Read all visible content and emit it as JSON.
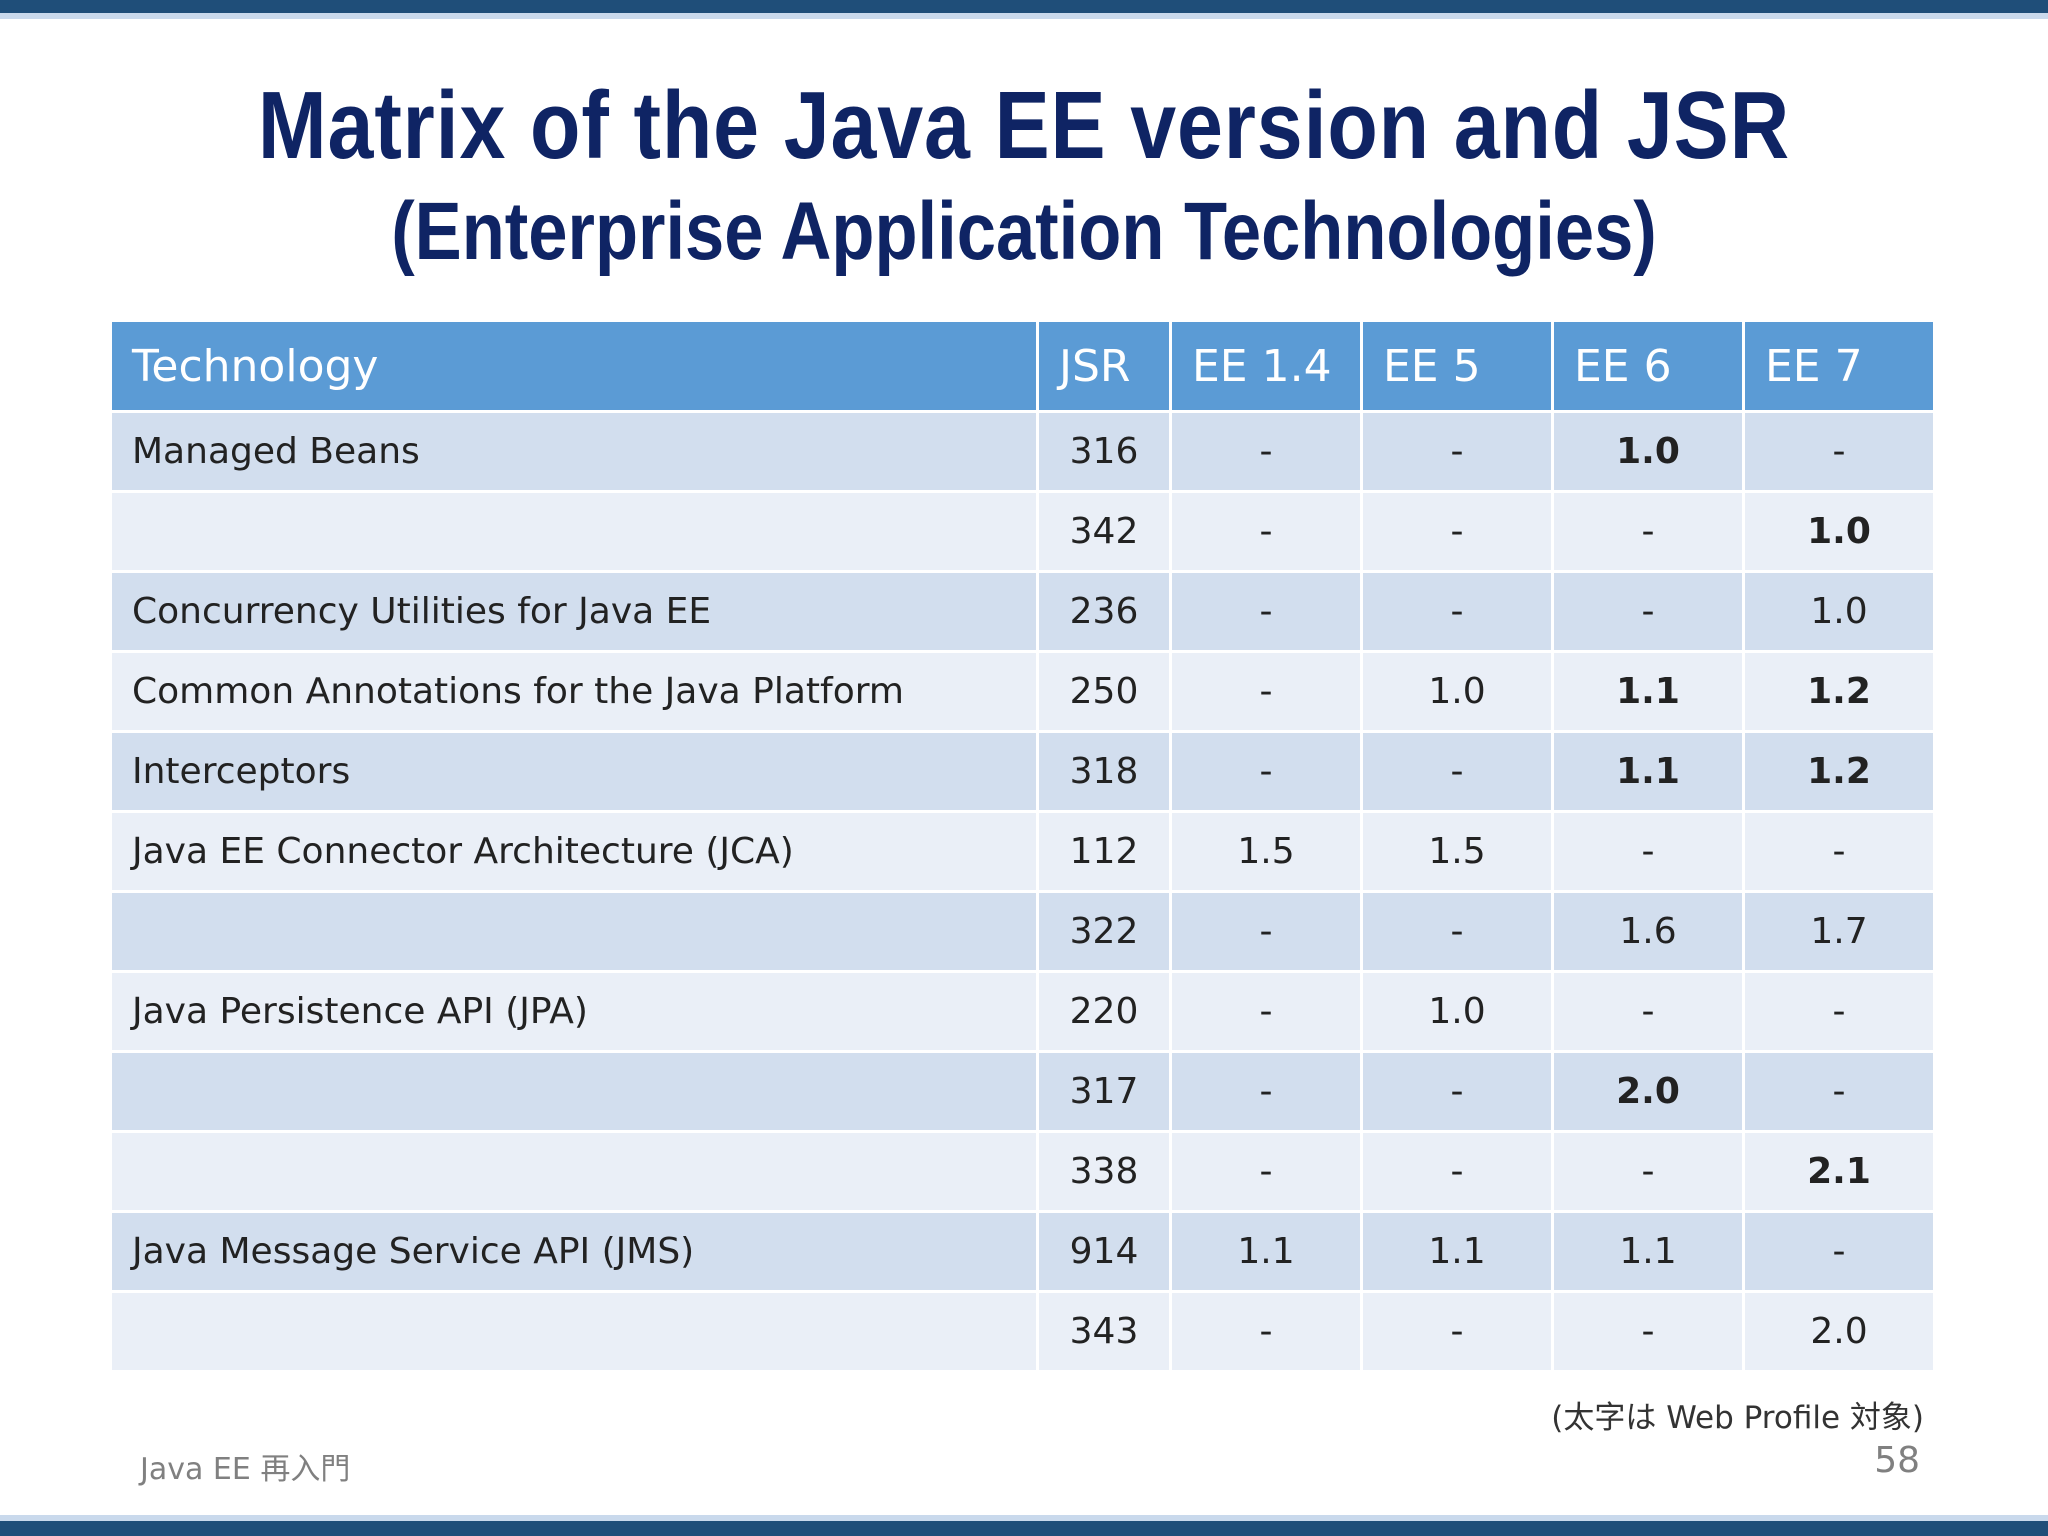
{
  "slide": {
    "title": "Matrix of the Java EE version and JSR",
    "subtitle": "(Enterprise Application Technologies)",
    "note": "(太字は Web Profile 対象)",
    "footer": "Java EE 再入門",
    "page_number": "58"
  },
  "table": {
    "headers": [
      "Technology",
      "JSR",
      "EE 1.4",
      "EE 5",
      "EE 6",
      "EE 7"
    ],
    "rows": [
      {
        "technology": "Managed Beans",
        "jsr": "316",
        "ee14": "-",
        "ee5": "-",
        "ee6": "1.0",
        "ee7": "-",
        "bold": [
          "ee6"
        ]
      },
      {
        "technology": "",
        "jsr": "342",
        "ee14": "-",
        "ee5": "-",
        "ee6": "-",
        "ee7": "1.0",
        "bold": [
          "ee7"
        ]
      },
      {
        "technology": "Concurrency Utilities for Java EE",
        "jsr": "236",
        "ee14": "-",
        "ee5": "-",
        "ee6": "-",
        "ee7": "1.0",
        "bold": []
      },
      {
        "technology": "Common Annotations for the Java Platform",
        "jsr": "250",
        "ee14": "-",
        "ee5": "1.0",
        "ee6": "1.1",
        "ee7": "1.2",
        "bold": [
          "ee6",
          "ee7"
        ]
      },
      {
        "technology": "Interceptors",
        "jsr": "318",
        "ee14": "-",
        "ee5": "-",
        "ee6": "1.1",
        "ee7": "1.2",
        "bold": [
          "ee6",
          "ee7"
        ]
      },
      {
        "technology": "Java EE Connector Architecture (JCA)",
        "jsr": "112",
        "ee14": "1.5",
        "ee5": "1.5",
        "ee6": "-",
        "ee7": "-",
        "bold": []
      },
      {
        "technology": "",
        "jsr": "322",
        "ee14": "-",
        "ee5": "-",
        "ee6": "1.6",
        "ee7": "1.7",
        "bold": []
      },
      {
        "technology": "Java Persistence API (JPA)",
        "jsr": "220",
        "ee14": "-",
        "ee5": "1.0",
        "ee6": "-",
        "ee7": "-",
        "bold": []
      },
      {
        "technology": "",
        "jsr": "317",
        "ee14": "-",
        "ee5": "-",
        "ee6": "2.0",
        "ee7": "-",
        "bold": [
          "ee6"
        ]
      },
      {
        "technology": "",
        "jsr": "338",
        "ee14": "-",
        "ee5": "-",
        "ee6": "-",
        "ee7": "2.1",
        "bold": [
          "ee7"
        ]
      },
      {
        "technology": "Java Message Service API (JMS)",
        "jsr": "914",
        "ee14": "1.1",
        "ee5": "1.1",
        "ee6": "1.1",
        "ee7": "-",
        "bold": []
      },
      {
        "technology": "",
        "jsr": "343",
        "ee14": "-",
        "ee5": "-",
        "ee6": "-",
        "ee7": "2.0",
        "bold": []
      }
    ]
  },
  "colors": {
    "header_bg": "#5b9bd5",
    "row_odd": "#d2deee",
    "row_even": "#eaeff7",
    "title": "#0f2464",
    "frame_dark": "#1f4e79"
  }
}
